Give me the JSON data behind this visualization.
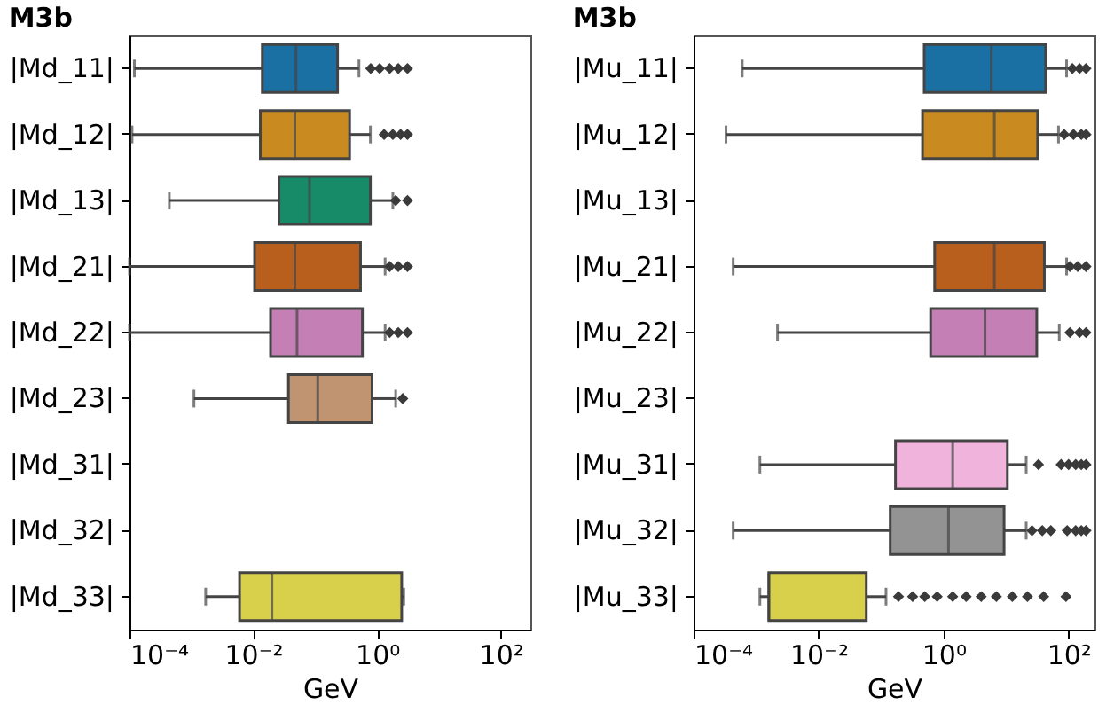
{
  "chart_data": [
    {
      "type": "box",
      "orientation": "horizontal",
      "log": "x",
      "title": "M3b",
      "xlabel": "GeV",
      "categories": [
        "|Md_11|",
        "|Md_12|",
        "|Md_13|",
        "|Md_21|",
        "|Md_22|",
        "|Md_23|",
        "|Md_31|",
        "|Md_32|",
        "|Md_33|"
      ],
      "colors": [
        "#1a6fa3",
        "#c98a20",
        "#178a68",
        "#b85f1e",
        "#c47fb5",
        "#c09470",
        "#f0b3dc",
        "#939393",
        "#d8cf4a"
      ],
      "boxes": [
        {
          "low": 0.00012,
          "q1": 0.014,
          "median": 0.049,
          "q3": 0.23,
          "high": 0.51,
          "outliers": [
            0.79,
            1.1,
            1.6,
            2.2,
            3.1
          ]
        },
        {
          "low": 0.00011,
          "q1": 0.013,
          "median": 0.047,
          "q3": 0.36,
          "high": 0.78,
          "outliers": [
            1.3,
            1.8,
            2.4,
            3.1
          ]
        },
        {
          "low": 0.00044,
          "q1": 0.026,
          "median": 0.081,
          "q3": 0.78,
          "high": 1.8,
          "outliers": [
            2.0,
            3.1
          ]
        },
        {
          "low": 0.0001,
          "q1": 0.0105,
          "median": 0.047,
          "q3": 0.54,
          "high": 1.35,
          "outliers": [
            1.6,
            2.2,
            3.1
          ]
        },
        {
          "low": 0.0001,
          "q1": 0.019,
          "median": 0.051,
          "q3": 0.58,
          "high": 1.35,
          "outliers": [
            1.6,
            2.2,
            3.1
          ]
        },
        {
          "low": 0.0011,
          "q1": 0.037,
          "median": 0.11,
          "q3": 0.83,
          "high": 2.0,
          "outliers": [
            2.6
          ]
        },
        null,
        null,
        {
          "low": 0.0017,
          "q1": 0.006,
          "median": 0.02,
          "q3": 2.5,
          "high": 2.7
        }
      ],
      "xlim": [
        0.0001,
        300
      ],
      "xticks": [
        {
          "value": 0.0001,
          "label": "10⁻⁴"
        },
        {
          "value": 0.01,
          "label": "10⁻²"
        },
        {
          "value": 1,
          "label": "10⁰"
        },
        {
          "value": 100,
          "label": "10²"
        }
      ]
    },
    {
      "type": "box",
      "orientation": "horizontal",
      "log": "x",
      "title": "M3b",
      "xlabel": "GeV",
      "categories": [
        "|Mu_11|",
        "|Mu_12|",
        "|Mu_13|",
        "|Mu_21|",
        "|Mu_22|",
        "|Mu_23|",
        "|Mu_31|",
        "|Mu_32|",
        "|Mu_33|"
      ],
      "colors": [
        "#1a6fa3",
        "#c98a20",
        "#178a68",
        "#b85f1e",
        "#c47fb5",
        "#c09470",
        "#f0b3dc",
        "#939393",
        "#d8cf4a"
      ],
      "boxes": [
        {
          "low": 0.0006,
          "q1": 0.49,
          "median": 5.8,
          "q3": 43,
          "high": 93,
          "outliers": [
            115,
            150,
            190
          ]
        },
        {
          "low": 0.00033,
          "q1": 0.46,
          "median": 6.5,
          "q3": 32,
          "high": 69,
          "outliers": [
            85,
            120,
            160,
            190
          ]
        },
        null,
        {
          "low": 0.00043,
          "q1": 0.72,
          "median": 6.5,
          "q3": 41,
          "high": 93,
          "outliers": [
            105,
            140,
            190
          ]
        },
        {
          "low": 0.0022,
          "q1": 0.62,
          "median": 4.6,
          "q3": 31,
          "high": 71,
          "outliers": [
            105,
            150,
            190
          ]
        },
        null,
        {
          "low": 0.00115,
          "q1": 0.17,
          "median": 1.4,
          "q3": 10.5,
          "high": 21,
          "outliers": [
            33,
            76,
            100,
            130,
            160,
            190
          ]
        },
        {
          "low": 0.00043,
          "q1": 0.14,
          "median": 1.2,
          "q3": 9.3,
          "high": 21,
          "outliers": [
            26,
            38,
            52,
            95,
            130,
            160,
            190
          ]
        },
        {
          "low": 0.00115,
          "q1": 0.0016,
          "median": 0.0016,
          "q3": 0.058,
          "high": 0.12,
          "outliers": [
            0.19,
            0.32,
            0.5,
            0.79,
            1.4,
            2.3,
            4,
            7,
            12.6,
            22,
            40,
            91
          ]
        }
      ],
      "xlim": [
        0.0001,
        260
      ],
      "xticks": [
        {
          "value": 0.0001,
          "label": "10⁻⁴"
        },
        {
          "value": 0.01,
          "label": "10⁻²"
        },
        {
          "value": 1,
          "label": "10⁰"
        },
        {
          "value": 100,
          "label": "10²"
        }
      ]
    }
  ]
}
